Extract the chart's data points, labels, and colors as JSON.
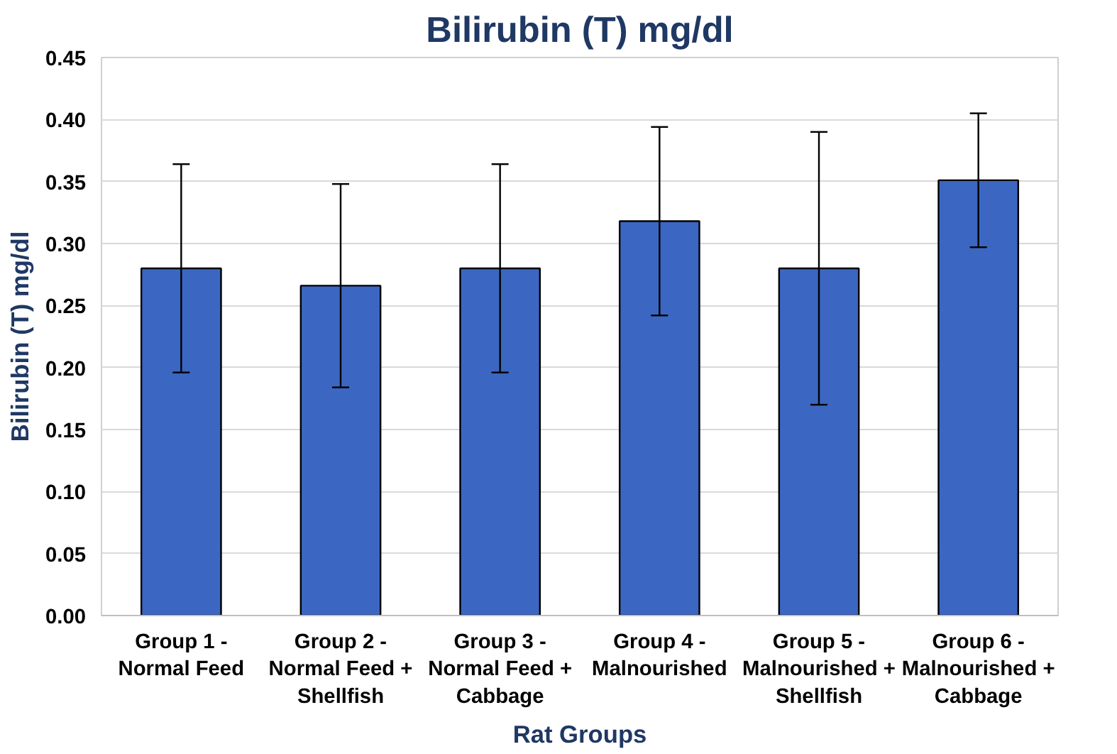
{
  "chart_data": {
    "type": "bar",
    "title": "Bilirubin (T) mg/dl",
    "xlabel": "Rat Groups",
    "ylabel": "Bilirubin (T) mg/dl",
    "categories": [
      "Group 1 -\nNormal Feed",
      "Group 2 -\nNormal Feed +\nShellfish",
      "Group 3 -\nNormal Feed +\nCabbage",
      "Group 4 -\nMalnourished",
      "Group 5 -\nMalnourished +\nShellfish",
      "Group 6 -\nMalnourished +\nCabbage"
    ],
    "values": [
      0.28,
      0.266,
      0.28,
      0.318,
      0.28,
      0.351
    ],
    "errors": [
      0.084,
      0.082,
      0.084,
      0.076,
      0.11,
      0.054
    ],
    "color": "#3b67c2",
    "ylim": [
      0,
      0.45
    ],
    "yticks": [
      {
        "value": 0,
        "label": "0.00"
      },
      {
        "value": 0.05,
        "label": "0.05"
      },
      {
        "value": 0.1,
        "label": "0.10"
      },
      {
        "value": 0.15,
        "label": "0.15"
      },
      {
        "value": 0.2,
        "label": "0.20"
      },
      {
        "value": 0.25,
        "label": "0.25"
      },
      {
        "value": 0.3,
        "label": "0.30"
      },
      {
        "value": 0.35,
        "label": "0.35"
      },
      {
        "value": 0.4,
        "label": "0.40"
      },
      {
        "value": 0.45,
        "label": "0.45"
      }
    ],
    "grid": "y"
  }
}
